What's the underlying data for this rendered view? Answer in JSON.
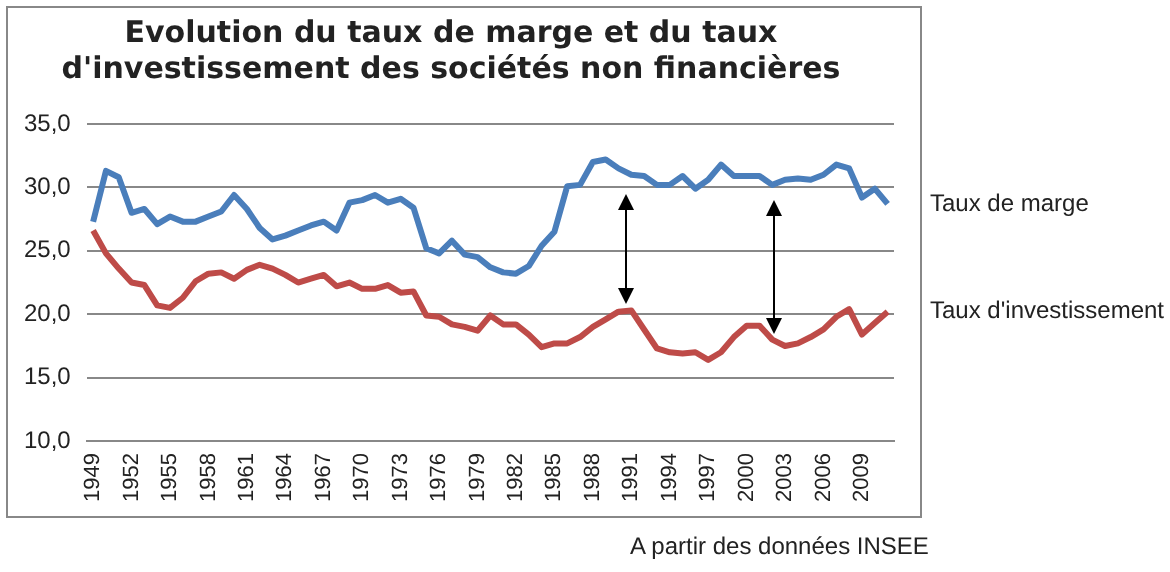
{
  "chart_data": {
    "type": "line",
    "title": "Evolution du taux de marge et du taux\nd'investissement des sociétés non financières",
    "categories": [
      "1949",
      null,
      null,
      "1952",
      null,
      null,
      "1955",
      null,
      null,
      "1958",
      null,
      null,
      "1961",
      null,
      null,
      "1964",
      null,
      null,
      "1967",
      null,
      null,
      "1970",
      null,
      null,
      "1973",
      null,
      null,
      "1976",
      null,
      null,
      "1979",
      null,
      null,
      "1982",
      null,
      null,
      "1985",
      null,
      null,
      "1988",
      null,
      null,
      "1991",
      null,
      null,
      "1994",
      null,
      null,
      "1997",
      null,
      null,
      "2000",
      null,
      null,
      "2003",
      null,
      null,
      "2006",
      null,
      null,
      "2009",
      null,
      null
    ],
    "series": [
      {
        "name": "Taux de marge",
        "color": "#4a7ebb",
        "values": [
          27.3,
          31.3,
          30.8,
          28.0,
          28.3,
          27.1,
          27.7,
          27.3,
          27.3,
          27.7,
          28.1,
          29.4,
          28.3,
          26.8,
          25.9,
          26.2,
          26.6,
          27.0,
          27.3,
          26.6,
          28.8,
          29.0,
          29.4,
          28.8,
          29.1,
          28.4,
          25.2,
          24.8,
          25.8,
          24.7,
          24.5,
          23.7,
          23.3,
          23.2,
          23.8,
          25.4,
          26.5,
          30.1,
          30.2,
          32.0,
          32.2,
          31.5,
          31.0,
          30.9,
          30.2,
          30.2,
          30.9,
          29.9,
          30.6,
          31.8,
          30.9,
          30.9,
          30.9,
          30.2,
          30.6,
          30.7,
          30.6,
          31.0,
          31.8,
          31.5,
          29.2,
          29.9,
          28.7
        ]
      },
      {
        "name": "Taux d'investissement",
        "color": "#be4b48",
        "values": [
          26.6,
          24.8,
          23.6,
          22.5,
          22.3,
          20.7,
          20.5,
          21.3,
          22.6,
          23.2,
          23.3,
          22.8,
          23.5,
          23.9,
          23.6,
          23.1,
          22.5,
          22.8,
          23.1,
          22.2,
          22.5,
          22.0,
          22.0,
          22.3,
          21.7,
          21.8,
          19.9,
          19.8,
          19.2,
          19.0,
          18.7,
          19.9,
          19.2,
          19.2,
          18.4,
          17.4,
          17.7,
          17.7,
          18.2,
          19.0,
          19.6,
          20.2,
          20.3,
          18.8,
          17.3,
          17.0,
          16.9,
          17.0,
          16.4,
          17.0,
          18.2,
          19.1,
          19.1,
          18.0,
          17.5,
          17.7,
          18.2,
          18.8,
          19.8,
          20.4,
          18.4,
          19.3,
          20.2
        ]
      }
    ],
    "ylim": [
      10,
      35
    ],
    "yticks": [
      {
        "value": 10,
        "label": "10,0"
      },
      {
        "value": 15,
        "label": "15,0"
      },
      {
        "value": 20,
        "label": "20,0"
      },
      {
        "value": 25,
        "label": "25,0"
      },
      {
        "value": 30,
        "label": "30,0"
      },
      {
        "value": 35,
        "label": "35,0"
      }
    ],
    "grid": "y",
    "legend": "right",
    "marker": "none",
    "line_style": "solid",
    "annotations": [
      "A partir des données INSEE"
    ]
  }
}
